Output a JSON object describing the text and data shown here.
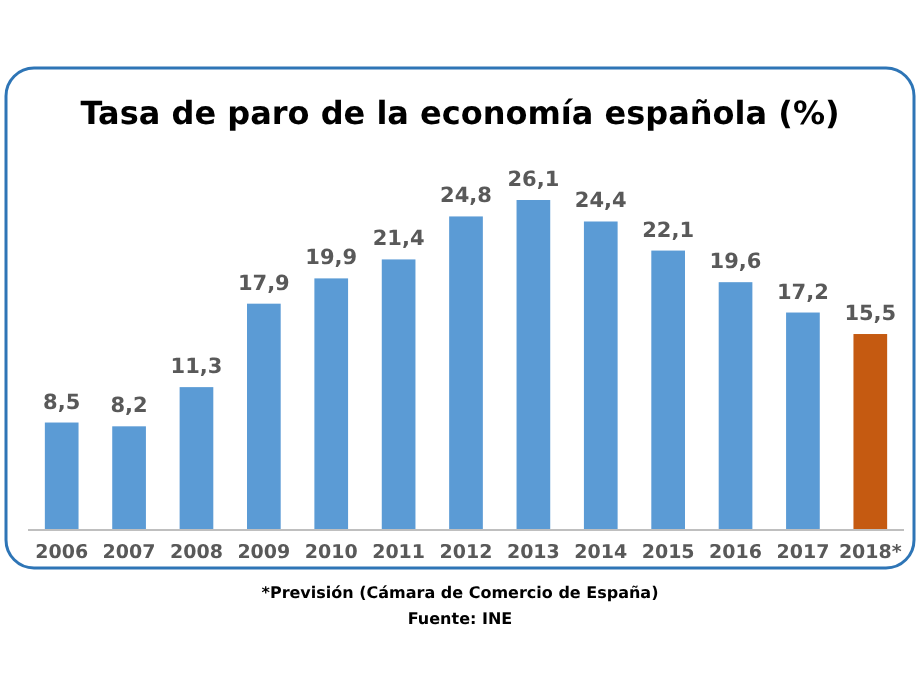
{
  "chart_data": {
    "type": "bar",
    "title": "Tasa de paro de la economía española (%)",
    "categories": [
      "2006",
      "2007",
      "2008",
      "2009",
      "2010",
      "2011",
      "2012",
      "2013",
      "2014",
      "2015",
      "2016",
      "2017",
      "2018*"
    ],
    "values": [
      8.5,
      8.2,
      11.3,
      17.9,
      19.9,
      21.4,
      24.8,
      26.1,
      24.4,
      22.1,
      19.6,
      17.2,
      15.5
    ],
    "colors": [
      "#5b9bd5",
      "#5b9bd5",
      "#5b9bd5",
      "#5b9bd5",
      "#5b9bd5",
      "#5b9bd5",
      "#5b9bd5",
      "#5b9bd5",
      "#5b9bd5",
      "#5b9bd5",
      "#5b9bd5",
      "#5b9bd5",
      "#c55a11"
    ],
    "value_labels": [
      "8,5",
      "8,2",
      "11,3",
      "17,9",
      "19,9",
      "21,4",
      "24,8",
      "26,1",
      "24,4",
      "22,1",
      "19,6",
      "17,2",
      "15,5"
    ],
    "annotations": [
      "*Previsión (Cámara de Comercio de España)",
      "Fuente: INE"
    ]
  }
}
